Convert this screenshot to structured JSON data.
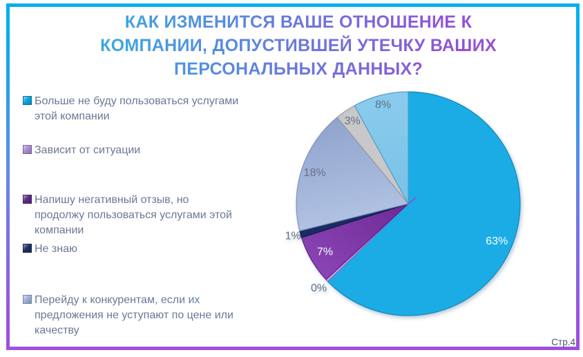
{
  "title": {
    "text": "КАК ИЗМЕНИТСЯ ВАШЕ ОТНОШЕНИЕ К\nКОМПАНИИ, ДОПУСТИВШЕЙ УТЕЧКУ ВАШИХ\nПЕРСОНАЛЬНЫХ ДАННЫХ?",
    "gradient_from": "#3AA7E3",
    "gradient_to": "#9351D7"
  },
  "theme": {
    "frame_top": "#00AEEF",
    "frame_mid": "#5E8BE6",
    "frame_bottom": "#9E4FE0"
  },
  "page": {
    "number_label": "Стр.4"
  },
  "legend": {
    "items": [
      {
        "label": "Больше не буду пользоваться услугами\nэтой компании",
        "color": "#0EA5DC",
        "border": "#0A6E97"
      },
      {
        "label": "Зависит от ситуации",
        "color": "#A78FCE",
        "border": "#7A5BA8"
      },
      {
        "label": "Напишу негативный отзыв, но\nпродолжу пользоваться услугами этой\nкомпании",
        "color": "#5C2A86",
        "border": "#411D60"
      },
      {
        "label": "Не знаю",
        "color": "#1E3060",
        "border": "#142145"
      },
      {
        "label": "Перейду к конкурентам, если их\nпредложения не уступают по цене или\nкачеству",
        "color": "#9DB2D6",
        "border": "#6C84AE"
      }
    ]
  },
  "chart_data": {
    "type": "pie",
    "title": "КАК ИЗМЕНИТСЯ ВАШЕ ОТНОШЕНИЕ К КОМПАНИИ, ДОПУСТИВШЕЙ УТЕЧКУ ВАШИХ ПЕРСОНАЛЬНЫХ ДАННЫХ?",
    "unit": "%",
    "categories": [
      "Больше не буду пользоваться услугами этой компании",
      "Зависит от ситуации",
      "Напишу негативный отзыв, но продолжу пользоваться услугами этой компании",
      "Не знаю",
      "Перейду к конкурентам, если их предложения не уступают по цене или качеству",
      null,
      null
    ],
    "values": [
      63,
      0,
      7,
      1,
      18,
      3,
      8
    ],
    "slices": [
      {
        "label": "Больше не буду пользоваться услугами этой компании",
        "value": 63,
        "pct": "63%",
        "fill": "#1BACE6",
        "stroke": "#1585BC",
        "label_color": "#FFFFFF",
        "label_r": 0.86
      },
      {
        "label": "Зависит от ситуации",
        "value": 0,
        "pct": "0%",
        "fill": "#C7A7E2",
        "stroke": "#9066BE",
        "label_color": "#616E86",
        "label_r": 1.1
      },
      {
        "label": "Напишу негативный отзыв, но продолжу пользоваться услугами этой компании",
        "value": 7,
        "pct": "7%",
        "fill": {
          "from": "#6E2B96",
          "to": "#8F47B9",
          "dir": [
            1,
            0,
            0,
            1
          ]
        },
        "stroke": "#5A2280",
        "label_color": "#FFFFFF",
        "label_r": 0.86
      },
      {
        "label": "Не знаю",
        "value": 1,
        "pct": "1%",
        "fill": "#1A2C63",
        "stroke": "#101D44",
        "label_color": "#616E86",
        "label_r": 1.07
      },
      {
        "label": "Перейду к конкурентам, если их предложения не уступают по цене или качеству",
        "value": 18,
        "pct": "18%",
        "fill": {
          "from": "#8FA3CC",
          "to": "#B4C5E5",
          "dir": [
            0.3,
            0,
            0.5,
            1
          ]
        },
        "stroke": "#8193BC",
        "label_color": "#66708A",
        "label_r": 0.88
      },
      {
        "label": null,
        "value": 3,
        "pct": "3%",
        "fill": "#C8C8CA",
        "stroke": "#98989D",
        "label_color": "#616E86",
        "label_r": 0.89
      },
      {
        "label": null,
        "value": 8,
        "pct": "8%",
        "fill": {
          "from": "#8ACBEC",
          "to": "#79C2E8",
          "dir": [
            0,
            0,
            0,
            1
          ]
        },
        "stroke": "#4E9FCB",
        "label_color": "#616E86",
        "label_r": 0.91
      }
    ],
    "layout": {
      "legend_position": "left",
      "start_angle": 0,
      "direction": "clockwise",
      "zero_slice_sweep_deg": 1.3,
      "center_tick": {
        "angle": 52,
        "length": 14,
        "color": "#A43BB4"
      }
    }
  }
}
